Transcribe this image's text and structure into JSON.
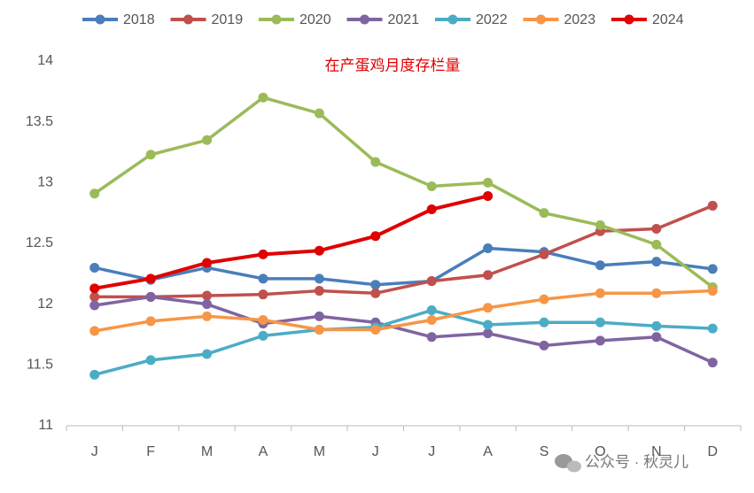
{
  "chart_data": {
    "type": "line",
    "title": "在产蛋鸡月度存栏量",
    "categories": [
      "J",
      "F",
      "M",
      "A",
      "M",
      "J",
      "J",
      "A",
      "S",
      "O",
      "N",
      "D"
    ],
    "ylim": [
      11,
      14
    ],
    "yticks": [
      11,
      11.5,
      12,
      12.5,
      13,
      13.5,
      14
    ],
    "legend": "top",
    "series": [
      {
        "name": "2018",
        "color": "#4a7ebb",
        "values": [
          12.3,
          12.2,
          12.3,
          12.21,
          12.21,
          12.16,
          12.19,
          12.46,
          12.43,
          12.32,
          12.35,
          12.29
        ]
      },
      {
        "name": "2019",
        "color": "#c0504d",
        "values": [
          12.06,
          12.06,
          12.07,
          12.08,
          12.11,
          12.09,
          12.19,
          12.24,
          12.41,
          12.6,
          12.62,
          12.81
        ]
      },
      {
        "name": "2020",
        "color": "#9bbb59",
        "values": [
          12.91,
          13.23,
          13.35,
          13.7,
          13.57,
          13.17,
          12.97,
          13.0,
          12.75,
          12.65,
          12.49,
          12.14
        ]
      },
      {
        "name": "2021",
        "color": "#8064a2",
        "values": [
          11.99,
          12.06,
          12.0,
          11.84,
          11.9,
          11.85,
          11.73,
          11.76,
          11.66,
          11.7,
          11.73,
          11.52
        ]
      },
      {
        "name": "2022",
        "color": "#4bacc6",
        "values": [
          11.42,
          11.54,
          11.59,
          11.74,
          11.79,
          11.81,
          11.95,
          11.83,
          11.85,
          11.85,
          11.82,
          11.8
        ]
      },
      {
        "name": "2023",
        "color": "#f79646",
        "values": [
          11.78,
          11.86,
          11.9,
          11.87,
          11.79,
          11.79,
          11.87,
          11.97,
          12.04,
          12.09,
          12.09,
          12.11
        ]
      },
      {
        "name": "2024",
        "color": "#e00000",
        "values": [
          12.13,
          12.21,
          12.34,
          12.41,
          12.44,
          12.56,
          12.78,
          12.89,
          null,
          null,
          null,
          null
        ]
      }
    ]
  },
  "watermark": "公众号 · 秋灵儿"
}
